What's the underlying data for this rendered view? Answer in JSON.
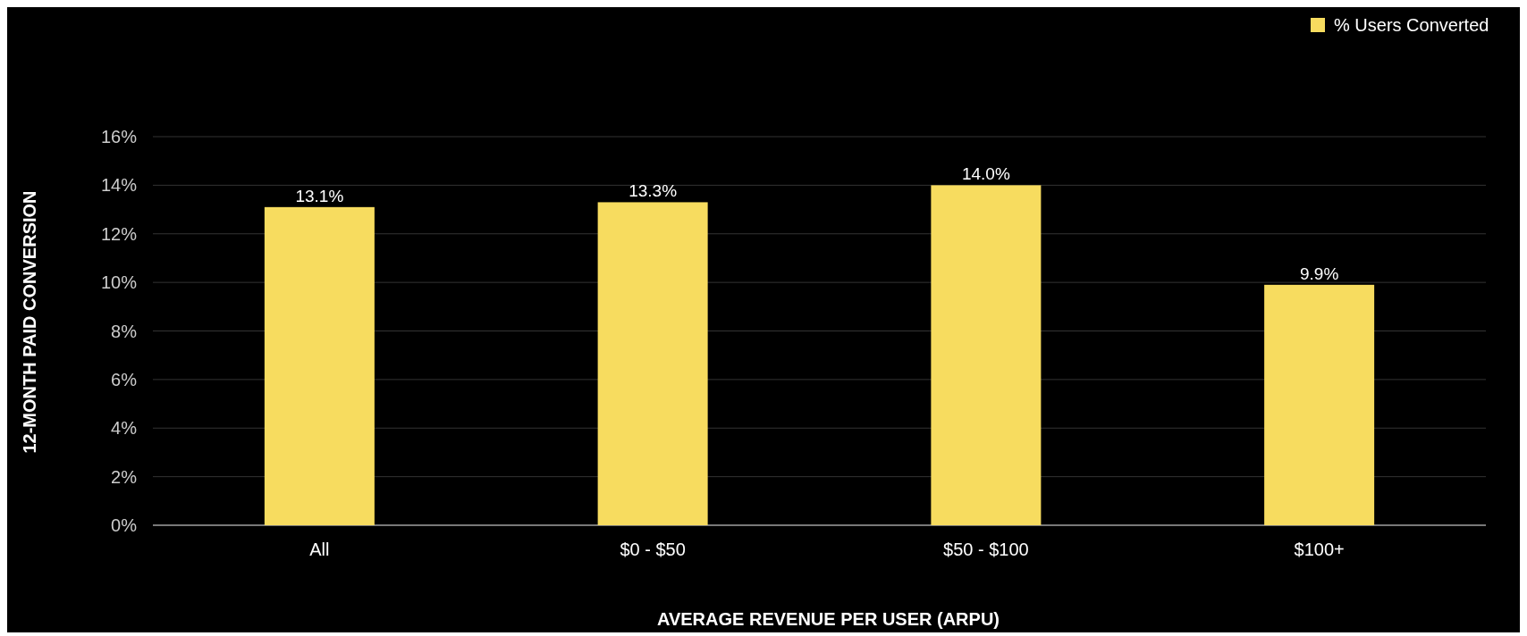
{
  "chart_data": {
    "type": "bar",
    "xlabel": "AVERAGE REVENUE PER USER (ARPU)",
    "ylabel": "12-MONTH PAID CONVERSION",
    "categories": [
      "All",
      "$0 - $50",
      "$50 - $100",
      "$100+"
    ],
    "series": [
      {
        "name": "% Users Converted",
        "color": "#f7dc5f",
        "values": [
          13.1,
          13.3,
          14.0,
          9.9
        ],
        "value_labels": [
          "13.1%",
          "13.3%",
          "14.0%",
          "9.9%"
        ]
      }
    ],
    "ylim": [
      0,
      16
    ],
    "yticks": [
      {
        "value": 0,
        "label": "0%"
      },
      {
        "value": 2,
        "label": "2%"
      },
      {
        "value": 4,
        "label": "4%"
      },
      {
        "value": 6,
        "label": "6%"
      },
      {
        "value": 8,
        "label": "8%"
      },
      {
        "value": 10,
        "label": "10%"
      },
      {
        "value": 12,
        "label": "12%"
      },
      {
        "value": 14,
        "label": "14%"
      },
      {
        "value": 16,
        "label": "16%"
      }
    ],
    "grid": "y",
    "legend": "top right"
  }
}
